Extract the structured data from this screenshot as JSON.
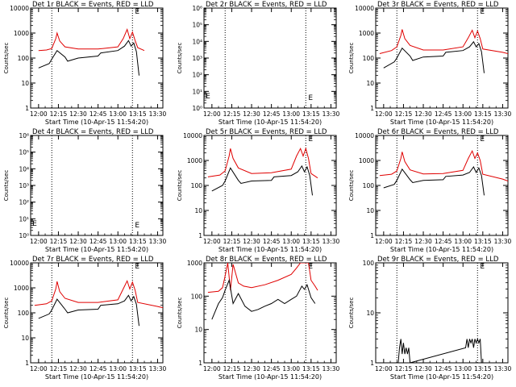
{
  "figure": {
    "subtitle": "Start Time (10-Apr-15 11:54:20)",
    "ylabel": "Counts/sec",
    "xticks": [
      "12:00",
      "12:15",
      "12:30",
      "12:45",
      "13:00",
      "13:15",
      "13:30"
    ]
  },
  "colors": {
    "events": "#000000",
    "lld": "#e00000"
  },
  "chart_data": [
    {
      "type": "line",
      "title": "Det 1r BLACK = Events, RED = LLD",
      "xlabel": "Start Time (10-Apr-15 11:54:20)",
      "ylabel": "Counts/sec",
      "yscale": "log",
      "ylim": [
        1,
        10000
      ],
      "yticks": [
        "1",
        "10",
        "100",
        "1000",
        "10000"
      ],
      "xlim": [
        "11:54",
        "13:34"
      ],
      "marker_lines": [
        "12:10",
        "13:11"
      ],
      "marker_letter": "E",
      "series": [
        {
          "name": "LLD",
          "color": "red",
          "x": [
            "12:00",
            "12:06",
            "12:10",
            "12:13",
            "12:14",
            "12:16",
            "12:20",
            "12:30",
            "12:45",
            "13:00",
            "13:04",
            "13:07",
            "13:09",
            "13:11",
            "13:13",
            "13:15",
            "13:20"
          ],
          "values": [
            200,
            210,
            240,
            600,
            1000,
            480,
            280,
            230,
            230,
            280,
            600,
            1400,
            600,
            1100,
            500,
            260,
            200
          ]
        },
        {
          "name": "Events",
          "color": "black",
          "x": [
            "12:00",
            "12:08",
            "12:10",
            "12:14",
            "12:20",
            "12:22",
            "12:30",
            "12:45",
            "12:47",
            "13:00",
            "13:05",
            "13:08",
            "13:10",
            "13:12",
            "13:14",
            "13:16"
          ],
          "values": [
            40,
            60,
            90,
            200,
            110,
            75,
            100,
            120,
            160,
            200,
            300,
            500,
            300,
            400,
            180,
            20
          ]
        }
      ]
    },
    {
      "type": "line",
      "title": "Det 2r BLACK = Events, RED = LLD",
      "xlabel": "Start Time (10-Apr-15 11:54:20)",
      "ylabel": "Counts/sec",
      "yscale": "log",
      "ylim": [
        1,
        1000000
      ],
      "yticks": [
        "10⁰",
        "10¹",
        "10²",
        "10³",
        "10⁴",
        "10⁵",
        "10⁶"
      ],
      "xlim": [
        "11:54",
        "13:34"
      ],
      "marker_lines": [
        "12:10",
        "13:11"
      ],
      "marker_letter": "E",
      "series": []
    },
    {
      "type": "line",
      "title": "Det 3r BLACK = Events, RED = LLD",
      "xlabel": "Start Time (10-Apr-15 11:54:20)",
      "ylabel": "Counts/sec",
      "yscale": "log",
      "ylim": [
        1,
        10000
      ],
      "yticks": [
        "1",
        "10",
        "100",
        "1000",
        "10000"
      ],
      "xlim": [
        "11:54",
        "13:34"
      ],
      "marker_lines": [
        "12:10",
        "13:11"
      ],
      "marker_letter": "E",
      "series": [
        {
          "name": "LLD",
          "color": "red",
          "x": [
            "11:57",
            "12:06",
            "12:10",
            "12:13",
            "12:14",
            "12:16",
            "12:20",
            "12:30",
            "12:45",
            "13:00",
            "13:04",
            "13:07",
            "13:09",
            "13:11",
            "13:13",
            "13:15",
            "13:30",
            "13:34"
          ],
          "values": [
            150,
            200,
            280,
            800,
            1400,
            600,
            320,
            210,
            210,
            280,
            650,
            1300,
            650,
            1200,
            600,
            230,
            170,
            150
          ]
        },
        {
          "name": "Events",
          "color": "black",
          "x": [
            "12:00",
            "12:08",
            "12:10",
            "12:14",
            "12:20",
            "12:22",
            "12:30",
            "12:45",
            "12:47",
            "13:00",
            "13:05",
            "13:08",
            "13:10",
            "13:12",
            "13:14",
            "13:16"
          ],
          "values": [
            40,
            70,
            100,
            250,
            120,
            80,
            110,
            120,
            170,
            200,
            280,
            450,
            280,
            380,
            180,
            25
          ]
        }
      ]
    },
    {
      "type": "line",
      "title": "Det 4r BLACK = Events, RED = LLD",
      "xlabel": "Start Time (10-Apr-15 11:54:20)",
      "ylabel": "Counts/sec",
      "yscale": "log",
      "ylim": [
        1,
        1000000
      ],
      "yticks": [
        "10⁰",
        "10¹",
        "10²",
        "10³",
        "10⁴",
        "10⁵",
        "10⁶"
      ],
      "xlim": [
        "11:54",
        "13:34"
      ],
      "marker_lines": [
        "12:10",
        "13:11"
      ],
      "marker_letter": "E",
      "series": []
    },
    {
      "type": "line",
      "title": "Det 5r BLACK = Events, RED = LLD",
      "xlabel": "Start Time (10-Apr-15 11:54:20)",
      "ylabel": "Counts/sec",
      "yscale": "log",
      "ylim": [
        1,
        10000
      ],
      "yticks": [
        "1",
        "10",
        "100",
        "1000",
        "10000"
      ],
      "xlim": [
        "11:54",
        "13:34"
      ],
      "marker_lines": [
        "12:10",
        "13:11"
      ],
      "marker_letter": "E",
      "series": [
        {
          "name": "LLD",
          "color": "red",
          "x": [
            "11:57",
            "12:06",
            "12:10",
            "12:13",
            "12:14",
            "12:16",
            "12:20",
            "12:30",
            "12:45",
            "13:00",
            "13:04",
            "13:07",
            "13:09",
            "13:11",
            "13:13",
            "13:15",
            "13:20"
          ],
          "values": [
            220,
            260,
            380,
            1500,
            3000,
            1200,
            500,
            300,
            320,
            450,
            1500,
            3000,
            1500,
            3000,
            1200,
            300,
            200
          ]
        },
        {
          "name": "Events",
          "color": "black",
          "x": [
            "12:00",
            "12:08",
            "12:10",
            "12:14",
            "12:20",
            "12:22",
            "12:30",
            "12:45",
            "12:47",
            "13:00",
            "13:05",
            "13:08",
            "13:10",
            "13:12",
            "13:14",
            "13:16"
          ],
          "values": [
            60,
            100,
            150,
            500,
            160,
            120,
            150,
            160,
            220,
            250,
            350,
            600,
            350,
            550,
            250,
            40
          ]
        }
      ]
    },
    {
      "type": "line",
      "title": "Det 6r BLACK = Events, RED = LLD",
      "xlabel": "Start Time (10-Apr-15 11:54:20)",
      "ylabel": "Counts/sec",
      "yscale": "log",
      "ylim": [
        1,
        10000
      ],
      "yticks": [
        "1",
        "10",
        "100",
        "1000",
        "10000"
      ],
      "xlim": [
        "11:54",
        "13:34"
      ],
      "marker_lines": [
        "12:10",
        "13:11"
      ],
      "marker_letter": "E",
      "series": [
        {
          "name": "LLD",
          "color": "red",
          "x": [
            "11:57",
            "12:06",
            "12:10",
            "12:13",
            "12:14",
            "12:16",
            "12:20",
            "12:30",
            "12:45",
            "13:00",
            "13:04",
            "13:07",
            "13:09",
            "13:11",
            "13:13",
            "13:15",
            "13:30",
            "13:34"
          ],
          "values": [
            250,
            280,
            380,
            1200,
            2200,
            900,
            420,
            290,
            300,
            400,
            1200,
            2400,
            1200,
            2000,
            1000,
            280,
            180,
            150
          ]
        },
        {
          "name": "Events",
          "color": "black",
          "x": [
            "12:00",
            "12:08",
            "12:10",
            "12:14",
            "12:20",
            "12:22",
            "12:30",
            "12:45",
            "12:47",
            "13:00",
            "13:05",
            "13:08",
            "13:10",
            "13:12",
            "13:14",
            "13:16"
          ],
          "values": [
            80,
            110,
            160,
            450,
            170,
            130,
            160,
            170,
            230,
            260,
            330,
            550,
            330,
            500,
            250,
            40
          ]
        }
      ]
    },
    {
      "type": "line",
      "title": "Det 7r BLACK = Events, RED = LLD",
      "xlabel": "Start Time (10-Apr-15 11:54:20)",
      "ylabel": "Counts/sec",
      "yscale": "log",
      "ylim": [
        1,
        10000
      ],
      "yticks": [
        "1",
        "10",
        "100",
        "1000",
        "10000"
      ],
      "xlim": [
        "11:54",
        "13:34"
      ],
      "marker_lines": [
        "12:10",
        "13:11"
      ],
      "marker_letter": "E",
      "series": [
        {
          "name": "LLD",
          "color": "red",
          "x": [
            "11:57",
            "12:06",
            "12:10",
            "12:13",
            "12:14",
            "12:16",
            "12:20",
            "12:30",
            "12:45",
            "13:00",
            "13:04",
            "13:07",
            "13:09",
            "13:11",
            "13:13",
            "13:15",
            "13:30",
            "13:34"
          ],
          "values": [
            200,
            230,
            300,
            900,
            1800,
            700,
            380,
            260,
            260,
            330,
            900,
            1900,
            900,
            1700,
            800,
            260,
            180,
            160
          ]
        },
        {
          "name": "Events",
          "color": "black",
          "x": [
            "12:00",
            "12:08",
            "12:10",
            "12:14",
            "12:20",
            "12:22",
            "12:30",
            "12:45",
            "12:47",
            "13:00",
            "13:05",
            "13:08",
            "13:10",
            "13:12",
            "13:14",
            "13:16"
          ],
          "values": [
            60,
            90,
            130,
            350,
            140,
            100,
            130,
            140,
            200,
            230,
            300,
            500,
            300,
            450,
            220,
            30
          ]
        }
      ]
    },
    {
      "type": "line",
      "title": "Det 8r BLACK = Events, RED = LLD",
      "xlabel": "Start Time (10-Apr-15 11:54:20)",
      "ylabel": "Counts/sec",
      "yscale": "log",
      "ylim": [
        1,
        1000
      ],
      "yticks": [
        "1",
        "10",
        "100",
        "1000"
      ],
      "xlim": [
        "11:54",
        "13:34"
      ],
      "marker_lines": [
        "12:10",
        "13:11"
      ],
      "marker_letter": "E",
      "series": [
        {
          "name": "LLD",
          "color": "red",
          "x": [
            "11:57",
            "12:05",
            "12:08",
            "12:10",
            "12:12",
            "12:14",
            "12:16",
            "12:20",
            "12:24",
            "12:30",
            "12:40",
            "12:50",
            "13:00",
            "13:04",
            "13:07",
            "13:09",
            "13:11",
            "13:13",
            "13:15",
            "13:18",
            "13:20"
          ],
          "values": [
            130,
            140,
            180,
            400,
            1000,
            150,
            900,
            250,
            200,
            180,
            220,
            300,
            450,
            700,
            1000,
            1000,
            1000,
            1000,
            300,
            200,
            150
          ]
        },
        {
          "name": "Events",
          "color": "black",
          "x": [
            "12:00",
            "12:05",
            "12:08",
            "12:10",
            "12:13",
            "12:16",
            "12:20",
            "12:25",
            "12:30",
            "12:35",
            "12:40",
            "12:45",
            "12:50",
            "12:55",
            "13:00",
            "13:04",
            "13:08",
            "13:10",
            "13:12",
            "13:15",
            "13:18"
          ],
          "values": [
            20,
            60,
            90,
            150,
            300,
            60,
            120,
            50,
            35,
            40,
            50,
            60,
            80,
            60,
            80,
            100,
            200,
            160,
            220,
            90,
            60
          ]
        }
      ]
    },
    {
      "type": "line",
      "title": "Det 9r BLACK = Events, RED = LLD",
      "xlabel": "Start Time (10-Apr-15 11:54:20)",
      "ylabel": "Counts/sec",
      "yscale": "log",
      "ylim": [
        1,
        100
      ],
      "yticks": [
        "1",
        "10",
        "100"
      ],
      "xlim": [
        "11:54",
        "13:34"
      ],
      "marker_lines": [
        "12:10",
        "13:11"
      ],
      "marker_letter": "E",
      "series": [
        {
          "name": "Events",
          "color": "black",
          "x": [
            "12:11",
            "12:12",
            "12:13",
            "12:14",
            "12:15",
            "12:16",
            "12:17",
            "12:18",
            "12:19",
            "12:20",
            "13:02",
            "13:03",
            "13:04",
            "13:05",
            "13:06",
            "13:07",
            "13:08",
            "13:09",
            "13:10",
            "13:11",
            "13:12",
            "13:13",
            "13:14"
          ],
          "values": [
            1,
            2,
            3,
            1.5,
            2.5,
            1.5,
            2,
            1.5,
            2,
            1,
            2,
            3,
            2,
            3,
            2.5,
            3,
            2,
            3,
            2.5,
            3,
            2.5,
            3,
            1
          ]
        }
      ]
    }
  ]
}
